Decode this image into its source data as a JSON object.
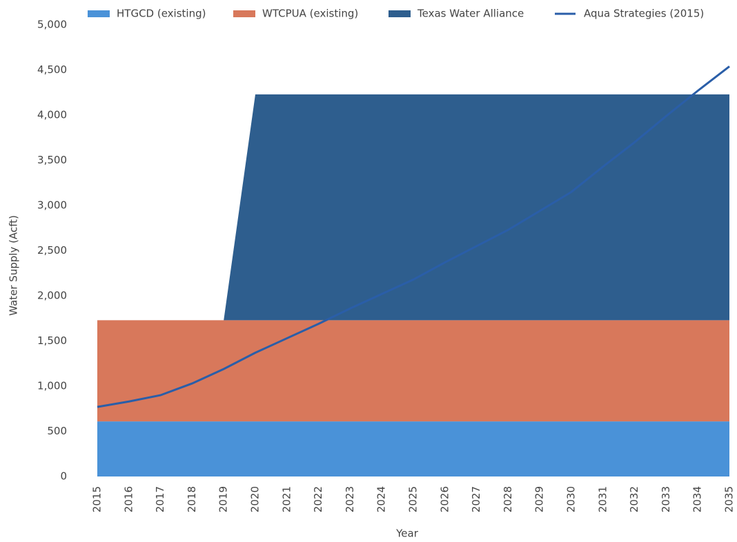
{
  "chart_data": {
    "type": "stacked-area-line",
    "x_label": "Year",
    "y_label": "Water Supply (Acft)",
    "categories": [
      "2015",
      "2016",
      "2017",
      "2018",
      "2019",
      "2020",
      "2021",
      "2022",
      "2023",
      "2024",
      "2025",
      "2026",
      "2027",
      "2028",
      "2029",
      "2030",
      "2031",
      "2032",
      "2033",
      "2034",
      "2035"
    ],
    "series": [
      {
        "name": "HTGCD (existing)",
        "kind": "area",
        "color": "#4a92d8",
        "values": [
          610,
          610,
          610,
          610,
          610,
          610,
          610,
          610,
          610,
          610,
          610,
          610,
          610,
          610,
          610,
          610,
          610,
          610,
          610,
          610,
          610
        ]
      },
      {
        "name": "WTCPUA (existing)",
        "kind": "area",
        "color": "#d8785b",
        "values": [
          1120,
          1120,
          1120,
          1120,
          1120,
          1120,
          1120,
          1120,
          1120,
          1120,
          1120,
          1120,
          1120,
          1120,
          1120,
          1120,
          1120,
          1120,
          1120,
          1120,
          1120
        ]
      },
      {
        "name": "Texas Water Alliance",
        "kind": "area",
        "color": "#2e5e8e",
        "values": [
          0,
          0,
          0,
          0,
          0,
          2500,
          2500,
          2500,
          2500,
          2500,
          2500,
          2500,
          2500,
          2500,
          2500,
          2500,
          2500,
          2500,
          2500,
          2500,
          2500
        ]
      },
      {
        "name": "Aqua Strategies (2015)",
        "kind": "line",
        "color": "#2a5ea8",
        "values": [
          770,
          830,
          900,
          1030,
          1190,
          1370,
          1530,
          1690,
          1860,
          2020,
          2180,
          2370,
          2550,
          2730,
          2940,
          3150,
          3430,
          3700,
          3990,
          4270,
          4540
        ]
      }
    ],
    "ylim": [
      0,
      5000
    ],
    "yticks": [
      0,
      500,
      {
        "value": 1000,
        "label": "1,000"
      },
      {
        "value": 1500,
        "label": "1,500"
      },
      {
        "value": 2000,
        "label": "2,000"
      },
      {
        "value": 2500,
        "label": "2,500"
      },
      {
        "value": 3000,
        "label": "3,000"
      },
      {
        "value": 3500,
        "label": "3,500"
      },
      {
        "value": 4000,
        "label": "4,000"
      },
      {
        "value": 4500,
        "label": "4,500"
      },
      {
        "value": 5000,
        "label": "5,000"
      }
    ],
    "legend": "top"
  }
}
